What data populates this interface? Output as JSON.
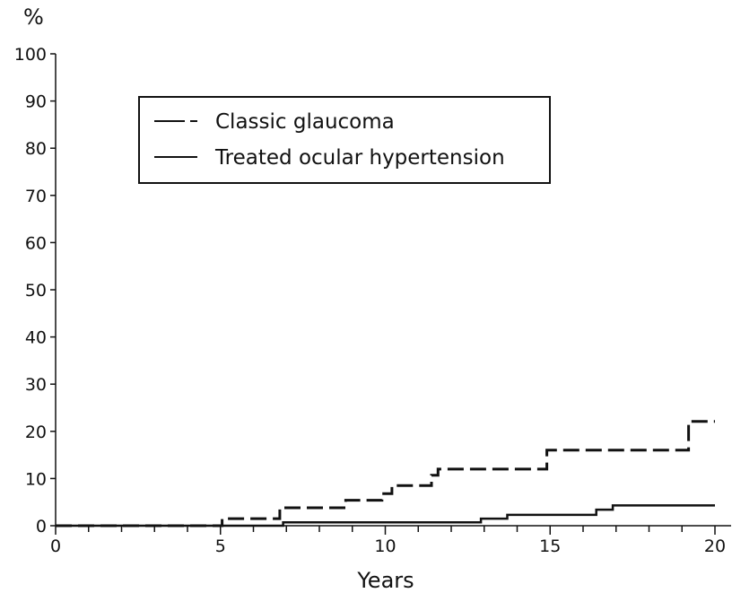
{
  "chart_data": {
    "type": "line",
    "title": "",
    "xlabel": "Years",
    "ylabel": "%",
    "xlim": [
      0,
      20
    ],
    "ylim": [
      0,
      100
    ],
    "x_ticks": [
      0,
      5,
      10,
      15,
      20
    ],
    "y_ticks": [
      0,
      10,
      20,
      30,
      40,
      50,
      60,
      70,
      80,
      90,
      100
    ],
    "x_minor_step": 1,
    "grid": false,
    "legend_position": "top-left",
    "series": [
      {
        "name": "Classic glaucoma",
        "style": "dashed",
        "color": "#111111",
        "step": true,
        "points": [
          [
            0,
            0
          ],
          [
            5.05,
            0
          ],
          [
            5.05,
            1.5
          ],
          [
            6.8,
            1.5
          ],
          [
            6.8,
            3.8
          ],
          [
            8.8,
            3.8
          ],
          [
            8.8,
            5.4
          ],
          [
            9.9,
            5.4
          ],
          [
            9.9,
            6.8
          ],
          [
            10.2,
            6.8
          ],
          [
            10.2,
            8.5
          ],
          [
            11.4,
            8.5
          ],
          [
            11.4,
            10.7
          ],
          [
            11.6,
            10.7
          ],
          [
            11.6,
            12.0
          ],
          [
            14.9,
            12.0
          ],
          [
            14.9,
            16.0
          ],
          [
            19.2,
            16.0
          ],
          [
            19.2,
            22.1
          ],
          [
            20,
            22.1
          ]
        ]
      },
      {
        "name": "Treated ocular hypertension",
        "style": "solid",
        "color": "#111111",
        "step": true,
        "points": [
          [
            0,
            0
          ],
          [
            6.9,
            0
          ],
          [
            6.9,
            0.7
          ],
          [
            12.9,
            0.7
          ],
          [
            12.9,
            1.5
          ],
          [
            13.7,
            1.5
          ],
          [
            13.7,
            2.3
          ],
          [
            16.4,
            2.3
          ],
          [
            16.4,
            3.4
          ],
          [
            16.9,
            3.4
          ],
          [
            16.9,
            4.3
          ],
          [
            20,
            4.3
          ]
        ]
      }
    ]
  }
}
